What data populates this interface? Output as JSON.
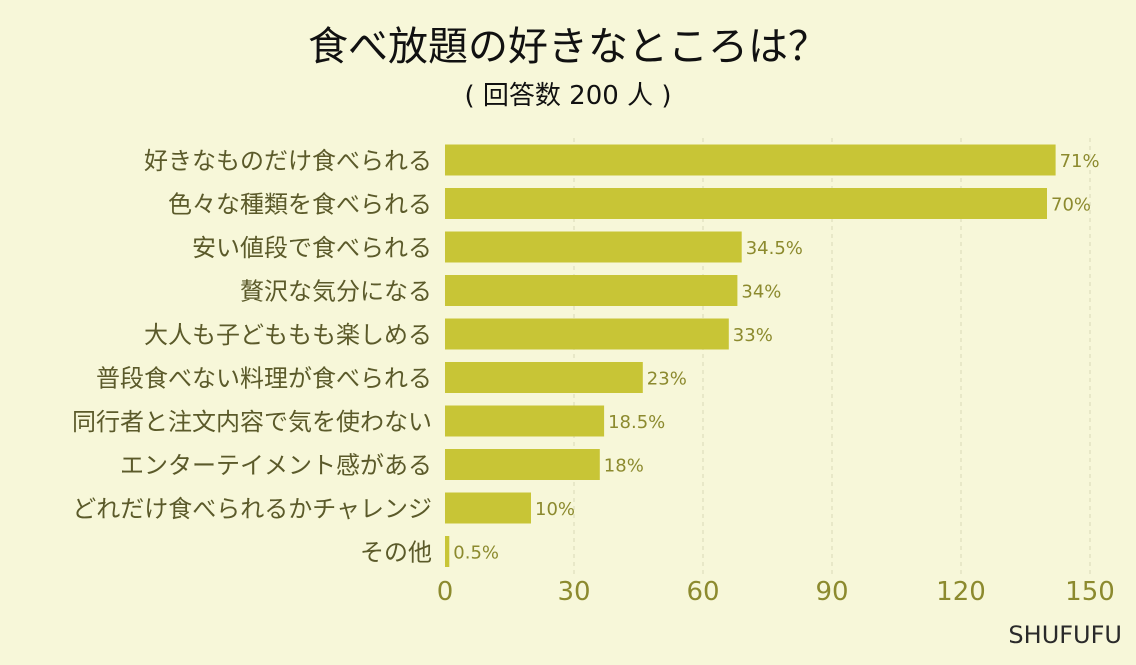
{
  "chart_data": {
    "type": "bar",
    "orientation": "horizontal",
    "title": "食べ放題の好きなところは？",
    "subtitle": "( 回答数 200 人 )",
    "categories": [
      "好きなものだけ食べられる",
      "色々な種類を食べられる",
      "安い値段で食べられる",
      "贅沢な気分になる",
      "大人も子どももも楽しめる",
      "普段食べない料理が食べられる",
      "同行者と注文内容で気を使わない",
      "エンターテイメント感がある",
      "どれだけ食べられるかチャレンジ",
      "その他"
    ],
    "values": [
      142,
      140,
      69,
      68,
      66,
      46,
      37,
      36,
      20,
      1
    ],
    "data_labels": [
      "71%",
      "70%",
      "34.5%",
      "34%",
      "33%",
      "23%",
      "18.5%",
      "18%",
      "10%",
      "0.5%"
    ],
    "xlim": [
      0,
      150
    ],
    "xticks": [
      "0",
      "30",
      "60",
      "90",
      "120",
      "150"
    ],
    "grid": "vertical dashed",
    "colors": {
      "background": "#f7f7d9",
      "bar": "#c8c536",
      "axis_label": "#8c8a2e",
      "category_label": "#5b5a2a",
      "title": "#111111",
      "grid": "#d9d9b8"
    }
  },
  "brand": "SHUFUFU"
}
